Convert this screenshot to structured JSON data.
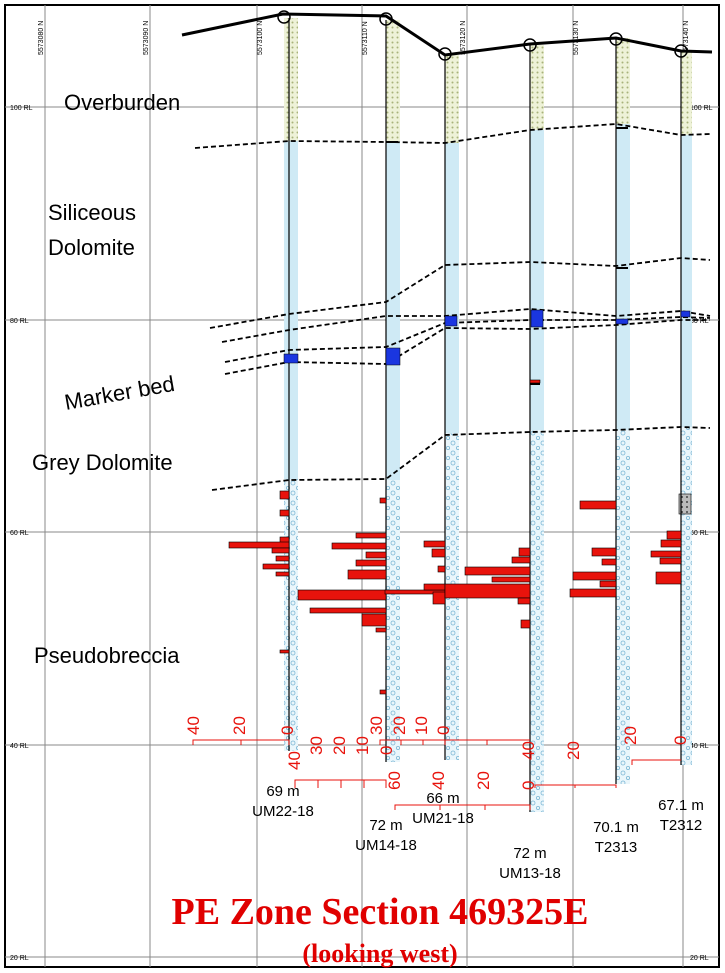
{
  "title": "PE Zone Section 469325E",
  "subtitle": "(looking west)",
  "northings": [
    "5573080 N",
    "5573090 N",
    "5573100 N",
    "5573110 N",
    "5573120 N",
    "5573130 N",
    "5573140 N"
  ],
  "rl_labels": [
    "100 RL",
    "80 RL",
    "60 RL",
    "40 RL",
    "20 RL"
  ],
  "units": {
    "overburden": "Overburden",
    "siliceous_1": "Siliceous",
    "siliceous_2": "Dolomite",
    "marker": "Marker bed",
    "grey": "Grey Dolomite",
    "pseudo": "Pseudobreccia"
  },
  "holes": [
    {
      "id": "UM22-18",
      "depth": "69 m",
      "scale": [
        "40",
        "20",
        "0"
      ],
      "scale_b": [
        "40",
        "30",
        "20",
        "10",
        "0"
      ]
    },
    {
      "id": "UM14-18",
      "depth": "72 m",
      "scale": [
        "30",
        "20",
        "10",
        "0"
      ],
      "scale_b": [
        "60",
        "40",
        "20",
        "0"
      ]
    },
    {
      "id": "UM21-18",
      "depth": "66 m",
      "scale": [
        "40",
        "20",
        "0"
      ],
      "scale_b": []
    },
    {
      "id": "UM13-18",
      "depth": "72 m",
      "scale": [
        "20",
        "0"
      ],
      "scale_b": []
    },
    {
      "id": "T2313",
      "depth": "70.1 m",
      "scale": [
        "20",
        "0"
      ],
      "scale_b": []
    },
    {
      "id": "T2312",
      "depth": "67.1 m",
      "scale": [],
      "scale_b": []
    }
  ],
  "colors": {
    "assay": "#e8130c",
    "marker": "#1a36e0",
    "fill": "#bfe4f2",
    "title": "#e00000"
  }
}
